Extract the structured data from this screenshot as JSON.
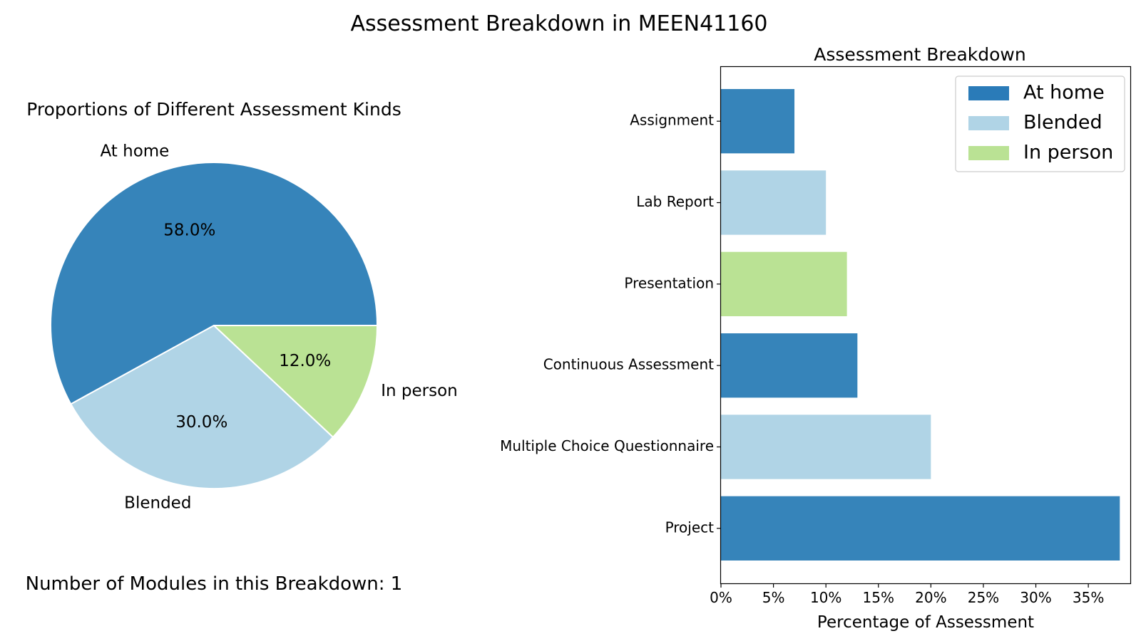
{
  "figure": {
    "title": "Assessment Breakdown in MEEN41160",
    "modules_note": "Number of Modules in this Breakdown: 1"
  },
  "colors": {
    "At home": "#3684ba",
    "Blended": "#b0d4e6",
    "In person": "#bae294",
    "legend_at_home": "#2a7bb8"
  },
  "chart_data": [
    {
      "type": "pie",
      "title": "Proportions of Different Assessment Kinds",
      "slices": [
        {
          "label": "At home",
          "value": 58.0,
          "pct_label": "58.0%",
          "color": "#3684ba"
        },
        {
          "label": "Blended",
          "value": 30.0,
          "pct_label": "30.0%",
          "color": "#b0d4e6"
        },
        {
          "label": "In person",
          "value": 12.0,
          "pct_label": "12.0%",
          "color": "#bae294"
        }
      ],
      "start_angle_deg": 0,
      "direction": "counterclockwise"
    },
    {
      "type": "bar",
      "orientation": "horizontal",
      "title": "Assessment Breakdown",
      "xlabel": "Percentage of Assessment",
      "ylabel": "",
      "xlim": [
        0,
        39
      ],
      "xticks": [
        {
          "value": 0,
          "label": "0%"
        },
        {
          "value": 5,
          "label": "5%"
        },
        {
          "value": 10,
          "label": "10%"
        },
        {
          "value": 15,
          "label": "15%"
        },
        {
          "value": 20,
          "label": "20%"
        },
        {
          "value": 25,
          "label": "25%"
        },
        {
          "value": 30,
          "label": "30%"
        },
        {
          "value": 35,
          "label": "35%"
        }
      ],
      "categories": [
        "Assignment",
        "Lab Report",
        "Presentation",
        "Continuous Assessment",
        "Multiple Choice Questionnaire",
        "Project"
      ],
      "values": [
        7,
        10,
        12,
        13,
        20,
        38
      ],
      "kinds": [
        "At home",
        "Blended",
        "In person",
        "At home",
        "Blended",
        "At home"
      ],
      "legend": {
        "placement": "top-right",
        "entries": [
          "At home",
          "Blended",
          "In person"
        ]
      },
      "grid": false
    }
  ]
}
